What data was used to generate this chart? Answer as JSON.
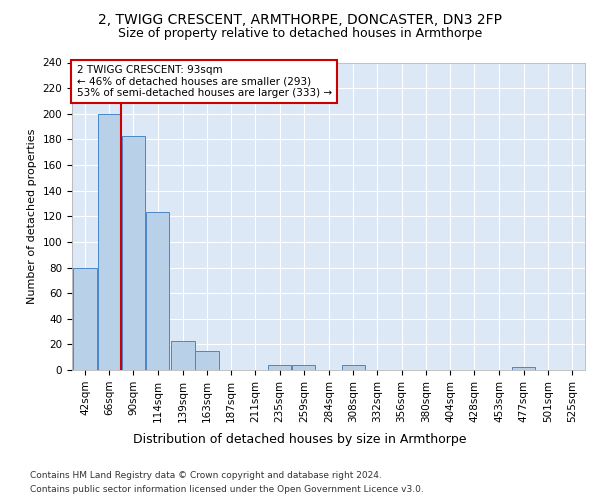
{
  "title1": "2, TWIGG CRESCENT, ARMTHORPE, DONCASTER, DN3 2FP",
  "title2": "Size of property relative to detached houses in Armthorpe",
  "xlabel": "Distribution of detached houses by size in Armthorpe",
  "ylabel": "Number of detached properties",
  "footnote1": "Contains HM Land Registry data © Crown copyright and database right 2024.",
  "footnote2": "Contains public sector information licensed under the Open Government Licence v3.0.",
  "annotation_line1": "2 TWIGG CRESCENT: 93sqm",
  "annotation_line2": "← 46% of detached houses are smaller (293)",
  "annotation_line3": "53% of semi-detached houses are larger (333) →",
  "bins": [
    42,
    66,
    90,
    114,
    139,
    163,
    187,
    211,
    235,
    259,
    284,
    308,
    332,
    356,
    380,
    404,
    428,
    453,
    477,
    501,
    525
  ],
  "bar_heights": [
    80,
    200,
    183,
    123,
    23,
    15,
    0,
    0,
    4,
    4,
    0,
    4,
    0,
    0,
    0,
    0,
    0,
    0,
    2,
    0,
    0
  ],
  "bin_width": 24,
  "bar_color": "#b8d0e8",
  "bar_edge_color": "#4a86c8",
  "vline_color": "#cc0000",
  "vline_x": 90,
  "annotation_box_facecolor": "#ffffff",
  "annotation_box_edgecolor": "#cc0000",
  "plot_bg_color": "#dce8f5",
  "grid_color": "#ffffff",
  "ylim": [
    0,
    240
  ],
  "yticks": [
    0,
    20,
    40,
    60,
    80,
    100,
    120,
    140,
    160,
    180,
    200,
    220,
    240
  ],
  "tick_labels": [
    "42sqm",
    "66sqm",
    "90sqm",
    "114sqm",
    "139sqm",
    "163sqm",
    "187sqm",
    "211sqm",
    "235sqm",
    "259sqm",
    "284sqm",
    "308sqm",
    "332sqm",
    "356sqm",
    "380sqm",
    "404sqm",
    "428sqm",
    "453sqm",
    "477sqm",
    "501sqm",
    "525sqm"
  ],
  "title1_fontsize": 10,
  "title2_fontsize": 9,
  "ylabel_fontsize": 8,
  "xlabel_fontsize": 9,
  "tick_fontsize": 7.5,
  "footnote_fontsize": 6.5
}
